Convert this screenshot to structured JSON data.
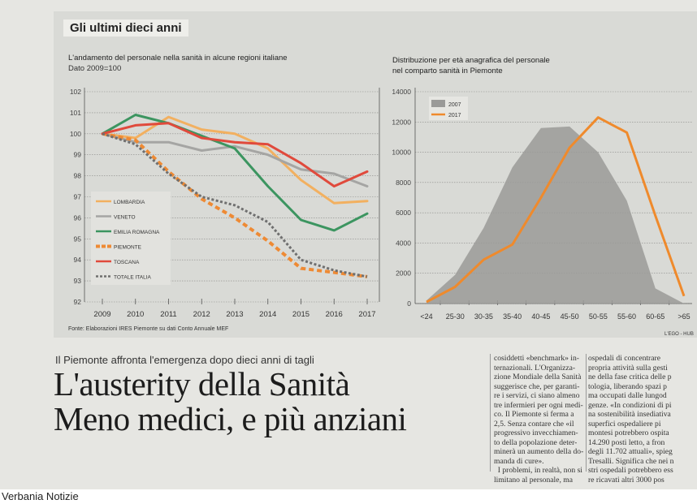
{
  "section_title": "Gli ultimi dieci anni",
  "chart_data": [
    {
      "type": "line",
      "title": "L'andamento del personale nella sanità in alcune regioni italiane",
      "subtitle": "Dato 2009=100",
      "source": "Fonte: Elaborazioni IRES Piemonte su dati Conto Annuale MEF",
      "x": [
        "2009",
        "2010",
        "2011",
        "2012",
        "2013",
        "2014",
        "2015",
        "2016",
        "2017"
      ],
      "ylim": [
        92,
        102
      ],
      "yticks": [
        "92",
        "93",
        "94",
        "95",
        "96",
        "97",
        "98",
        "99",
        "100",
        "101",
        "102"
      ],
      "grid": true,
      "legend": "bottom-left",
      "series": [
        {
          "name": "LOMBARDIA",
          "color": "#f2b060",
          "dashed": false,
          "values": [
            100,
            99.8,
            100.8,
            100.2,
            100.0,
            99.3,
            97.8,
            96.7,
            96.8
          ]
        },
        {
          "name": "VENETO",
          "color": "#a5a5a3",
          "dashed": false,
          "values": [
            100,
            99.6,
            99.6,
            99.2,
            99.4,
            99.0,
            98.3,
            98.1,
            97.5
          ]
        },
        {
          "name": "EMILIA ROMAGNA",
          "color": "#3c9560",
          "dashed": false,
          "values": [
            100,
            100.9,
            100.5,
            99.9,
            99.3,
            97.5,
            95.9,
            95.4,
            96.2
          ]
        },
        {
          "name": "PIEMONTE",
          "color": "#ee8a34",
          "dashed": true,
          "values": [
            100,
            99.7,
            98.2,
            96.9,
            96.0,
            94.9,
            93.6,
            93.4,
            93.2
          ]
        },
        {
          "name": "TOSCANA",
          "color": "#e04a3c",
          "dashed": false,
          "values": [
            100,
            100.4,
            100.5,
            99.8,
            99.6,
            99.5,
            98.6,
            97.5,
            98.2
          ]
        },
        {
          "name": "TOTALE ITALIA",
          "color": "#6f6f6f",
          "dashed": true,
          "values": [
            100,
            99.5,
            98.1,
            97.0,
            96.6,
            95.8,
            94.0,
            93.5,
            93.2
          ]
        }
      ]
    },
    {
      "type": "area",
      "title": "Distribuzione per età anagrafica del personale nel comparto sanità in Piemonte",
      "title_lines": [
        "Distribuzione per età anagrafica del personale",
        "nel comparto sanità in Piemonte"
      ],
      "categories": [
        "<24",
        "25-30",
        "30-35",
        "35-40",
        "40-45",
        "45-50",
        "50-55",
        "55-60",
        "60-65",
        ">65"
      ],
      "ylim": [
        0,
        14000
      ],
      "yticks": [
        "0",
        "2000",
        "4000",
        "6000",
        "8000",
        "10000",
        "12000",
        "14000"
      ],
      "grid": true,
      "legend": "top-left",
      "credit": "L'EGO - HUB",
      "series": [
        {
          "name": "2007",
          "type": "area",
          "color": "#9a9a98",
          "values": [
            200,
            1900,
            5000,
            9000,
            11600,
            11700,
            10000,
            6800,
            1000,
            0
          ]
        },
        {
          "name": "2017",
          "type": "line",
          "color": "#ef8a2c",
          "values": [
            100,
            1100,
            2900,
            3900,
            7000,
            10300,
            12300,
            11300,
            5800,
            500
          ]
        }
      ]
    }
  ],
  "article": {
    "kicker": "Il Piemonte affronta l'emergenza dopo dieci anni di tagli",
    "headline_line1": "L'austerity della Sanità",
    "headline_line2": "Meno medici, e più anziani",
    "column1": "cosiddetti «benchmark» in-\nternazionali. L'Organizza-\nzione Mondiale della Sanità\nsuggerisce che, per garanti-\nre i servizi, ci siano almeno\ntre infermieri per ogni medi-\nco. Il Piemonte si ferma a\n2,5. Senza contare che «il\nprogressivo invecchiamen-\nto della popolazione deter-\nminerà un aumento della do-\nmanda di cure».\n  I problemi, in realtà, non si\nlimitano al personale, ma",
    "column2": "ospedali di concentrare\npropria attività sulla gesti\nne della fase critica delle p\ntologia, liberando spazi p\nma occupati dalle lungod\ngenze. «In condizioni di pi\nna sostenibilità insediativa\nsuperfici ospedaliere pi\nmontesi potrebbero ospita\n14.290 posti letto, a fron\ndegli 11.702 attuali», spieg\nTresalli. Significa che nei n\nstri ospedali potrebbero ess\nre ricavati altri 3000 pos"
  },
  "footer": "Verbania Notizie"
}
